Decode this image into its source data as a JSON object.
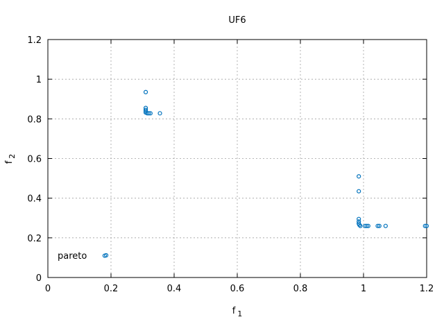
{
  "chart_data": {
    "type": "scatter",
    "title": "UF6",
    "xlabel": {
      "base": "f",
      "sub": "1"
    },
    "ylabel": {
      "base": "f",
      "sub": "2"
    },
    "xlim": [
      0,
      1.2
    ],
    "ylim": [
      0,
      1.2
    ],
    "xticks": [
      "0",
      "0.2",
      "0.4",
      "0.6",
      "0.8",
      "1",
      "1.2"
    ],
    "yticks": [
      "0",
      "0.2",
      "0.4",
      "0.6",
      "0.8",
      "1",
      "1.2"
    ],
    "grid": true,
    "legend": {
      "position": "bottom-left",
      "label": "pareto"
    },
    "series": [
      {
        "name": "pareto",
        "color": "#0072bd",
        "marker": "open-circle",
        "points": [
          [
            0.18,
            0.11
          ],
          [
            0.31,
            0.935
          ],
          [
            0.31,
            0.855
          ],
          [
            0.31,
            0.845
          ],
          [
            0.31,
            0.838
          ],
          [
            0.31,
            0.832
          ],
          [
            0.315,
            0.828
          ],
          [
            0.32,
            0.828
          ],
          [
            0.325,
            0.828
          ],
          [
            0.355,
            0.828
          ],
          [
            0.985,
            0.51
          ],
          [
            0.985,
            0.435
          ],
          [
            0.985,
            0.295
          ],
          [
            0.985,
            0.282
          ],
          [
            0.985,
            0.272
          ],
          [
            0.987,
            0.265
          ],
          [
            0.99,
            0.26
          ],
          [
            1.005,
            0.26
          ],
          [
            1.01,
            0.26
          ],
          [
            1.015,
            0.26
          ],
          [
            1.045,
            0.26
          ],
          [
            1.05,
            0.26
          ],
          [
            1.07,
            0.26
          ],
          [
            1.195,
            0.26
          ],
          [
            1.2,
            0.26
          ]
        ]
      }
    ]
  }
}
